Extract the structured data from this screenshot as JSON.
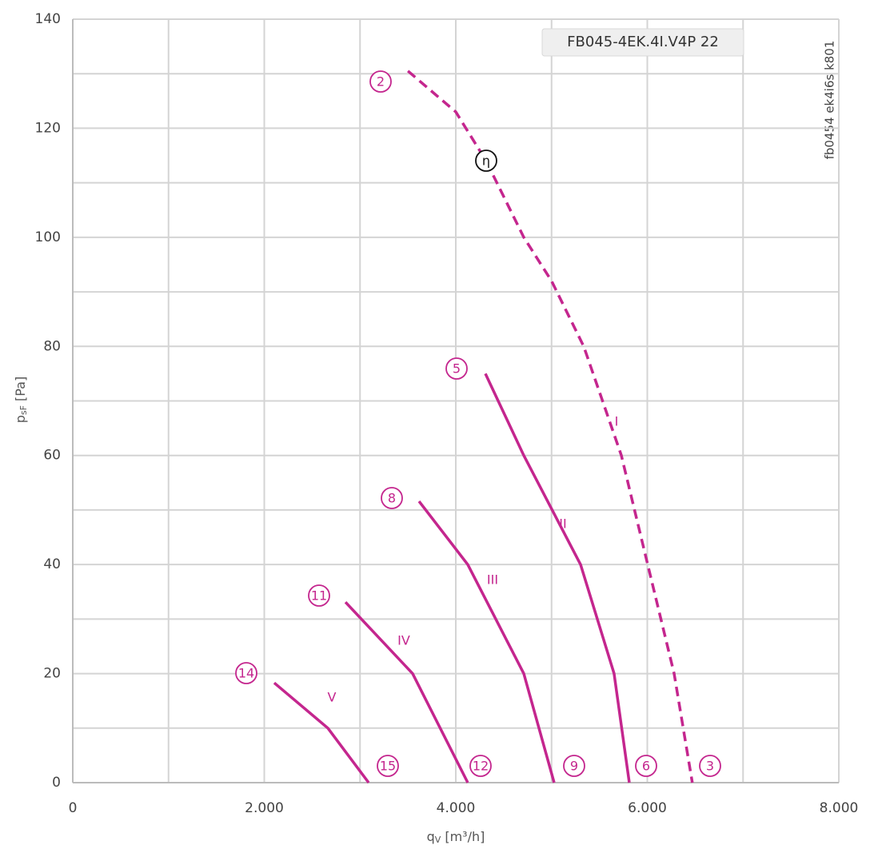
{
  "chart_data": {
    "type": "line",
    "x_label": {
      "symbol": "q",
      "subscript": "V",
      "unit": "[m³/h]"
    },
    "y_label": {
      "symbol": "p",
      "subscript": "sF",
      "unit": "[Pa]"
    },
    "tooltip": "FB045-4EK.4I.V4P 22",
    "side_note": "fb0454 ek4i6s k801",
    "xlim": [
      0,
      8000
    ],
    "xticks": [
      0,
      {
        "value": 2000,
        "label": "2.000"
      },
      {
        "value": 4000,
        "label": "4.000"
      },
      {
        "value": 6000,
        "label": "6.000"
      },
      {
        "value": 8000,
        "label": "8.000"
      }
    ],
    "ylim": [
      0,
      140
    ],
    "yticks": [
      0,
      20,
      40,
      60,
      80,
      100,
      120,
      140
    ],
    "grid": true,
    "minor_grid": true,
    "series": [
      {
        "name": "I",
        "color": "#c4268e",
        "style": "dashed",
        "x": [
          3500,
          4000,
          4317,
          4710,
          5000,
          5336,
          5729,
          6004,
          6280,
          6470
        ],
        "values": [
          130.5,
          123,
          114,
          100,
          92,
          80,
          60,
          40,
          20,
          0
        ]
      },
      {
        "name": "II",
        "color": "#c4268e",
        "style": "solid",
        "x": [
          4309,
          4710,
          5303,
          5653,
          5812
        ],
        "values": [
          75,
          60,
          40,
          20,
          0
        ]
      },
      {
        "name": "III",
        "color": "#c4268e",
        "style": "solid",
        "x": [
          3616,
          4125,
          4710,
          5027
        ],
        "values": [
          51.6,
          40,
          20,
          0
        ]
      },
      {
        "name": "IV",
        "color": "#c4268e",
        "style": "solid",
        "x": [
          2848,
          3549,
          4125
        ],
        "values": [
          33.1,
          20,
          0
        ]
      },
      {
        "name": "V",
        "color": "#c4268e",
        "style": "solid",
        "x": [
          2104,
          2664,
          3090
        ],
        "values": [
          18.3,
          10,
          0
        ]
      }
    ],
    "annotations": [
      {
        "text": "2",
        "color": "#c4268e"
      },
      {
        "text": "η",
        "color": "#111111"
      },
      {
        "text": "5",
        "color": "#c4268e"
      },
      {
        "text": "8",
        "color": "#c4268e"
      },
      {
        "text": "11",
        "color": "#c4268e"
      },
      {
        "text": "14",
        "color": "#c4268e"
      },
      {
        "text": "15",
        "color": "#c4268e"
      },
      {
        "text": "12",
        "color": "#c4268e"
      },
      {
        "text": "9",
        "color": "#c4268e"
      },
      {
        "text": "6",
        "color": "#c4268e"
      },
      {
        "text": "3",
        "color": "#c4268e"
      }
    ]
  }
}
